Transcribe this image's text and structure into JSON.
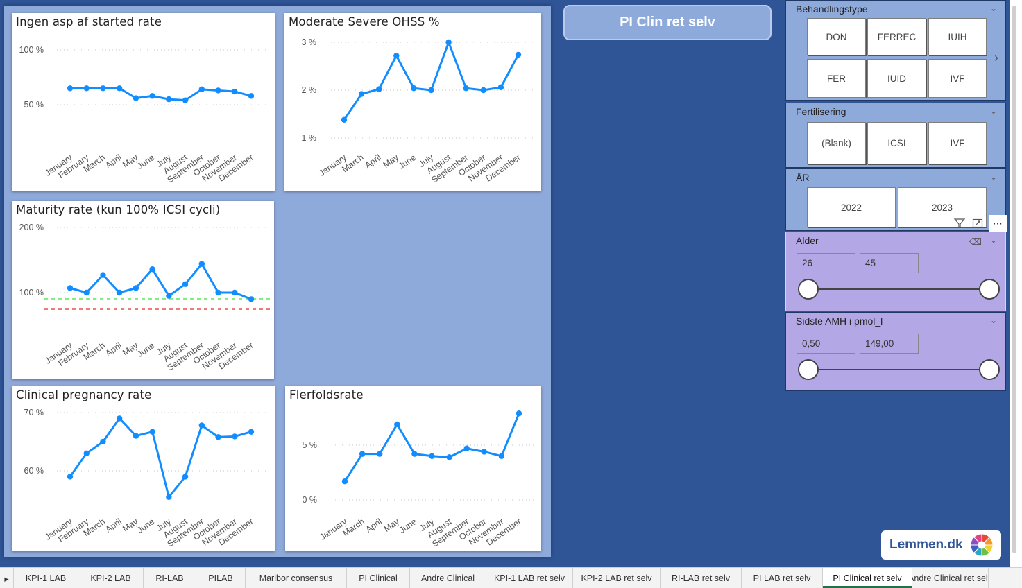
{
  "header_button": "PI Clin ret selv",
  "charts": [
    {
      "id": "ingen-asp",
      "title": "Ingen asp af started rate",
      "months": [
        "January",
        "February",
        "March",
        "April",
        "May",
        "June",
        "July",
        "August",
        "September",
        "October",
        "November",
        "December"
      ],
      "values": [
        65,
        65,
        65,
        65,
        56,
        58,
        55,
        54,
        64,
        63,
        62,
        58
      ],
      "yticks": [
        {
          "v": 100,
          "label": "100 %"
        },
        {
          "v": 50,
          "label": "50 %"
        }
      ]
    },
    {
      "id": "ohss",
      "title": "Moderate Severe OHSS %",
      "months": [
        "January",
        "March",
        "April",
        "May",
        "June",
        "July",
        "August",
        "September",
        "October",
        "November",
        "December"
      ],
      "values": [
        1.38,
        1.92,
        2.02,
        2.72,
        2.04,
        2.0,
        3.0,
        2.04,
        2.0,
        2.06,
        2.74
      ],
      "yticks": [
        {
          "v": 3,
          "label": "3 %"
        },
        {
          "v": 2,
          "label": "2 %"
        },
        {
          "v": 1,
          "label": "1 %"
        }
      ]
    },
    {
      "id": "maturity",
      "title": "Maturity rate (kun 100% ICSI cycli)",
      "months": [
        "January",
        "February",
        "March",
        "April",
        "May",
        "June",
        "July",
        "August",
        "September",
        "October",
        "November",
        "December"
      ],
      "values": [
        107,
        100,
        127,
        100,
        107,
        136,
        95,
        113,
        144,
        100,
        100,
        90
      ],
      "yticks": [
        {
          "v": 200,
          "label": "200 %"
        },
        {
          "v": 100,
          "label": "100 %"
        }
      ],
      "ref_lines": [
        {
          "v": 90,
          "color": "#7ff07f"
        },
        {
          "v": 75,
          "color": "#f07a7a"
        }
      ]
    },
    {
      "id": "clinical",
      "title": "Clinical pregnancy rate",
      "months": [
        "January",
        "February",
        "March",
        "April",
        "May",
        "June",
        "July",
        "August",
        "September",
        "October",
        "November",
        "December"
      ],
      "values": [
        59,
        63,
        65,
        69,
        66,
        66.7,
        55.5,
        59,
        67.8,
        65.8,
        65.9,
        66.7
      ],
      "yticks": [
        {
          "v": 70,
          "label": "70 %"
        },
        {
          "v": 60,
          "label": "60 %"
        }
      ]
    },
    {
      "id": "flerfold",
      "title": "Flerfoldsrate",
      "months": [
        "January",
        "March",
        "April",
        "May",
        "June",
        "July",
        "August",
        "September",
        "October",
        "November",
        "December"
      ],
      "values": [
        1.7,
        4.2,
        4.2,
        6.9,
        4.2,
        4.0,
        3.9,
        4.7,
        4.4,
        4.0,
        7.9
      ],
      "yticks": [
        {
          "v": 5,
          "label": "5 %"
        },
        {
          "v": 0,
          "label": "0 %"
        }
      ]
    }
  ],
  "slicers": {
    "behandlingstype": {
      "title": "Behandlingstype",
      "items": [
        "DON",
        "FERREC",
        "IUIH",
        "FER",
        "IUID",
        "IVF"
      ]
    },
    "fertilisering": {
      "title": "Fertilisering",
      "items": [
        "(Blank)",
        "ICSI",
        "IVF"
      ]
    },
    "aar": {
      "title": "ÅR",
      "items": [
        "2022",
        "2023"
      ]
    },
    "alder": {
      "title": "Alder",
      "min": "26",
      "max": "45"
    },
    "amh": {
      "title": "Sidste AMH i pmol_l",
      "min": "0,50",
      "max": "149,00"
    }
  },
  "logo_text": "Lemmen.dk",
  "tabs": [
    "KPI-1 LAB",
    "KPI-2 LAB",
    "RI-LAB",
    "PILAB",
    "Maribor consensus",
    "PI Clinical",
    "Andre Clinical",
    "KPI-1 LAB ret selv",
    "KPI-2 LAB ret selv",
    "RI-LAB ret selv",
    "PI LAB ret selv",
    "PI Clinical ret selv",
    "Andre Clinical ret selv"
  ],
  "active_tab": "PI Clinical ret selv",
  "chart_data": [
    {
      "type": "line",
      "title": "Ingen asp af started rate",
      "x": [
        "January",
        "February",
        "March",
        "April",
        "May",
        "June",
        "July",
        "August",
        "September",
        "October",
        "November",
        "December"
      ],
      "series": [
        {
          "values": [
            65,
            65,
            65,
            65,
            56,
            58,
            55,
            54,
            64,
            63,
            62,
            58
          ]
        }
      ],
      "ylim": [
        25,
        112
      ]
    },
    {
      "type": "line",
      "title": "Moderate Severe OHSS %",
      "x": [
        "January",
        "March",
        "April",
        "May",
        "June",
        "July",
        "August",
        "September",
        "October",
        "November",
        "December"
      ],
      "series": [
        {
          "values": [
            1.38,
            1.92,
            2.02,
            2.72,
            2.04,
            2.0,
            3.0,
            2.04,
            2.0,
            2.06,
            2.74
          ]
        }
      ],
      "ylim": [
        1,
        3
      ]
    },
    {
      "type": "line",
      "title": "Maturity rate (kun 100% ICSI cycli)",
      "x": [
        "January",
        "February",
        "March",
        "April",
        "May",
        "June",
        "July",
        "August",
        "September",
        "October",
        "November",
        "December"
      ],
      "series": [
        {
          "values": [
            107,
            100,
            127,
            100,
            107,
            136,
            95,
            113,
            144,
            100,
            100,
            90
          ]
        }
      ],
      "ylim": [
        50,
        200
      ]
    },
    {
      "type": "line",
      "title": "Clinical pregnancy rate",
      "x": [
        "January",
        "February",
        "March",
        "April",
        "May",
        "June",
        "July",
        "August",
        "September",
        "October",
        "November",
        "December"
      ],
      "series": [
        {
          "values": [
            59,
            63,
            65,
            69,
            66,
            66.7,
            55.5,
            59,
            67.8,
            65.8,
            65.9,
            66.7
          ]
        }
      ],
      "ylim": [
        55,
        70
      ]
    },
    {
      "type": "line",
      "title": "Flerfoldsrate",
      "x": [
        "January",
        "March",
        "April",
        "May",
        "June",
        "July",
        "August",
        "September",
        "October",
        "November",
        "December"
      ],
      "series": [
        {
          "values": [
            1.7,
            4.2,
            4.2,
            6.9,
            4.2,
            4.0,
            3.9,
            4.7,
            4.4,
            4.0,
            7.9
          ]
        }
      ],
      "ylim": [
        0,
        8
      ]
    }
  ]
}
